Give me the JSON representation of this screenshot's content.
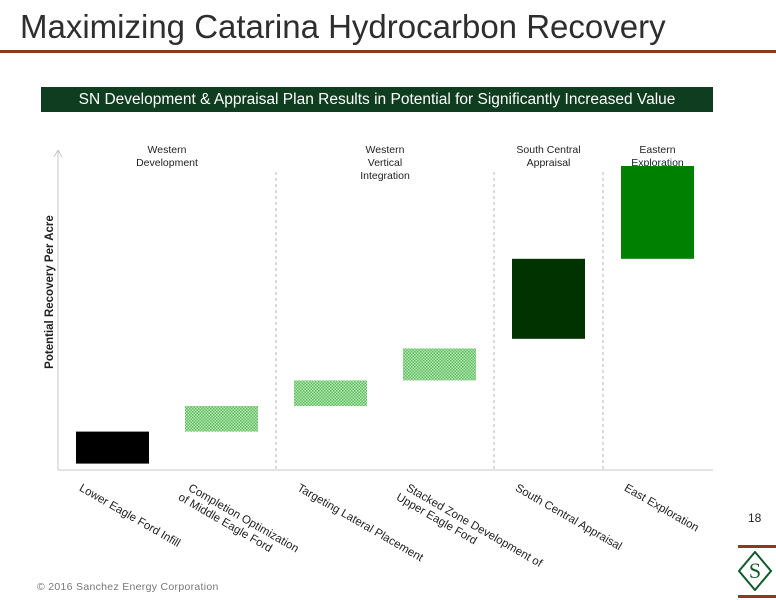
{
  "title": "Maximizing Catarina Hydrocarbon Recovery",
  "banner": "SN Development & Appraisal Plan Results in Potential for Significantly Increased Value",
  "footer": "© 2016 Sanchez Energy Corporation",
  "page_number": "18",
  "logo_letter": "S",
  "colors": {
    "title_rule": "#8b3a1e",
    "banner_bg": "#0f3d1f",
    "black": "#000000",
    "light_green_hatch": "#7fcf7f",
    "dark_green": "#003300",
    "bright_green": "#008000"
  },
  "chart_data": {
    "type": "waterfall",
    "ylabel": "Potential Recovery Per Acre",
    "xlabel": "",
    "y_axis_values_shown": false,
    "grid": false,
    "sections": [
      {
        "label": [
          "Western",
          "Development"
        ],
        "categories": [
          0,
          1
        ]
      },
      {
        "label": [
          "Western",
          "Vertical",
          "Integration"
        ],
        "categories": [
          2,
          3
        ]
      },
      {
        "label": [
          "South Central",
          "Appraisal"
        ],
        "categories": [
          4
        ]
      },
      {
        "label": [
          "Eastern",
          "Exploration"
        ],
        "categories": [
          5
        ]
      }
    ],
    "categories": [
      [
        "Lower Eagle Ford Infill"
      ],
      [
        "Completion Optimization",
        "of Middle Eagle Ford"
      ],
      [
        "Targeting Lateral Placement"
      ],
      [
        "Stacked Zone Development of",
        "Upper Eagle Ford"
      ],
      [
        "South Central Appraisal"
      ],
      [
        "East Exploration"
      ]
    ],
    "ylim": [
      0,
      100
    ],
    "bars": [
      {
        "bottom": 2,
        "top": 12,
        "style": "black"
      },
      {
        "bottom": 12,
        "top": 20,
        "style": "light_green_hatch"
      },
      {
        "bottom": 20,
        "top": 28,
        "style": "light_green_hatch"
      },
      {
        "bottom": 28,
        "top": 38,
        "style": "light_green_hatch"
      },
      {
        "bottom": 41,
        "top": 66,
        "style": "dark_green"
      },
      {
        "bottom": 66,
        "top": 95,
        "style": "bright_green"
      }
    ]
  }
}
